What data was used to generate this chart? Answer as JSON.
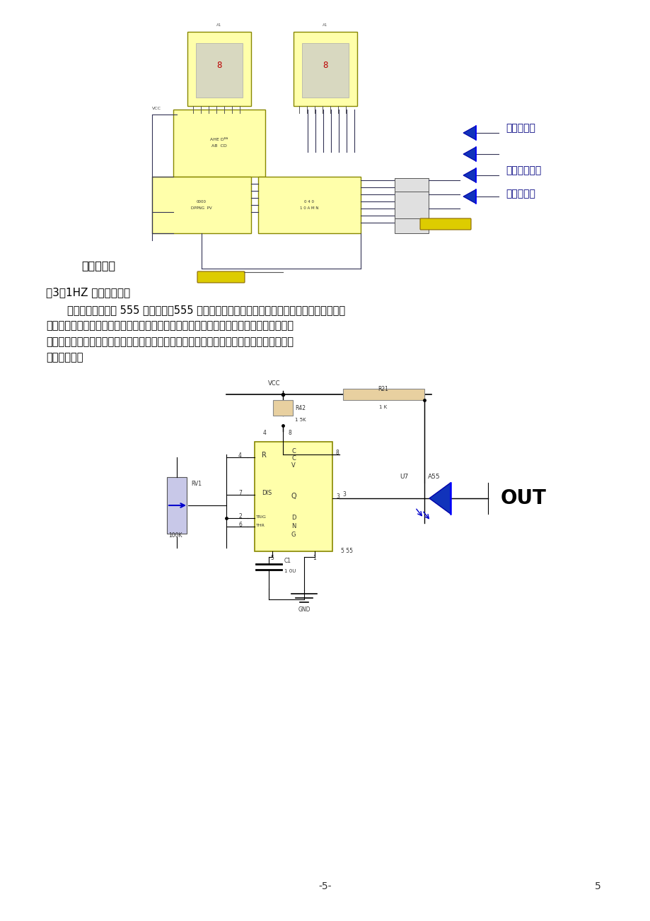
{
  "bg_color": "#ffffff",
  "page_width": 9.2,
  "page_height": 13.03,
  "text_color": "#000000",
  "dark_blue": "#000080",
  "wire_color": "#333355",
  "yellow_chip": "#ffffaa",
  "yellow_chip_edge": "#888800",
  "resistor_fill": "#e8d0a0",
  "section_text": "（3）1HZ 脉冲产生电路",
  "para_lines": [
    "　　该电路的采用 555 定时电路。555 定时电路是一种电路简单且多用途的单片中规模集成电",
    "路。该电路使用灵活、方便，只需外接少量的阔容元件就可以构成单稳、多谐和运密特触发",
    "器。因而要波形的产生与变换、测量与控制、家用电器和电子玩具等等许多领域中都得到了",
    "广泛的应用。"
  ],
  "label_timing": "定时时间到",
  "label_answer": "抢答信号输入",
  "label_pulse": "秒脉冲输入",
  "label_reset": "高电平复位",
  "page_num_center": "-5-",
  "page_num_right": "5"
}
